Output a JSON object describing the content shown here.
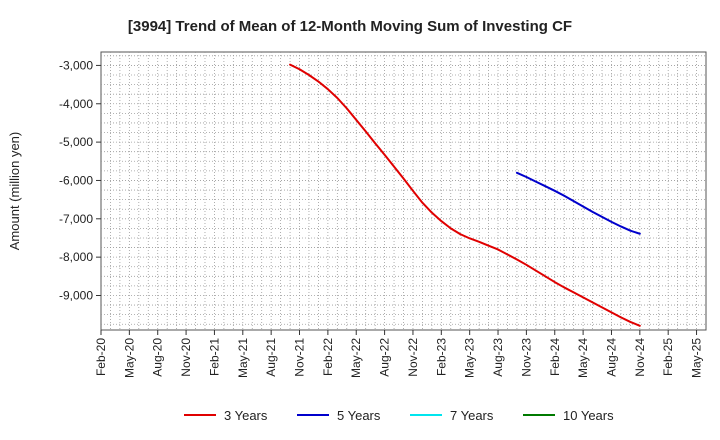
{
  "chart_data": {
    "type": "line",
    "title": "[3994]  Trend of Mean of 12-Month Moving Sum of Investing CF",
    "xlabel": "",
    "ylabel": "Amount (million yen)",
    "x_ticks": [
      "Feb-20",
      "May-20",
      "Aug-20",
      "Nov-20",
      "Feb-21",
      "May-21",
      "Aug-21",
      "Nov-21",
      "Feb-22",
      "May-22",
      "Aug-22",
      "Nov-22",
      "Feb-23",
      "May-23",
      "Aug-23",
      "Nov-23",
      "Feb-24",
      "May-24",
      "Aug-24",
      "Nov-24",
      "Feb-25",
      "May-25"
    ],
    "y_ticks": [
      -3000,
      -4000,
      -5000,
      -6000,
      -7000,
      -8000,
      -9000
    ],
    "y_tick_labels": [
      "-3,000",
      "-4,000",
      "-5,000",
      "-6,000",
      "-7,000",
      "-8,000",
      "-9,000"
    ],
    "ylim": [
      -9900,
      -2650
    ],
    "grid": true,
    "series": [
      {
        "name": "3 Years",
        "color": "#e00000",
        "points": [
          [
            "Oct-21",
            -2980
          ],
          [
            "Nov-21",
            -3100
          ],
          [
            "Dec-21",
            -3250
          ],
          [
            "Jan-22",
            -3420
          ],
          [
            "Feb-22",
            -3620
          ],
          [
            "Mar-22",
            -3850
          ],
          [
            "Apr-22",
            -4120
          ],
          [
            "May-22",
            -4420
          ],
          [
            "Jun-22",
            -4720
          ],
          [
            "Jul-22",
            -5030
          ],
          [
            "Aug-22",
            -5330
          ],
          [
            "Sep-22",
            -5640
          ],
          [
            "Oct-22",
            -5950
          ],
          [
            "Nov-22",
            -6270
          ],
          [
            "Dec-22",
            -6580
          ],
          [
            "Jan-23",
            -6840
          ],
          [
            "Feb-23",
            -7060
          ],
          [
            "Mar-23",
            -7250
          ],
          [
            "Apr-23",
            -7400
          ],
          [
            "May-23",
            -7510
          ],
          [
            "Jun-23",
            -7600
          ],
          [
            "Jul-23",
            -7700
          ],
          [
            "Aug-23",
            -7800
          ],
          [
            "Sep-23",
            -7930
          ],
          [
            "Oct-23",
            -8060
          ],
          [
            "Nov-23",
            -8200
          ],
          [
            "Dec-23",
            -8350
          ],
          [
            "Jan-24",
            -8500
          ],
          [
            "Feb-24",
            -8650
          ],
          [
            "Mar-24",
            -8790
          ],
          [
            "Apr-24",
            -8920
          ],
          [
            "May-24",
            -9050
          ],
          [
            "Jun-24",
            -9180
          ],
          [
            "Jul-24",
            -9310
          ],
          [
            "Aug-24",
            -9440
          ],
          [
            "Sep-24",
            -9570
          ],
          [
            "Oct-24",
            -9690
          ],
          [
            "Nov-24",
            -9790
          ]
        ]
      },
      {
        "name": "5 Years",
        "color": "#0000cc",
        "points": [
          [
            "Oct-23",
            -5800
          ],
          [
            "Nov-23",
            -5910
          ],
          [
            "Dec-23",
            -6030
          ],
          [
            "Jan-24",
            -6150
          ],
          [
            "Feb-24",
            -6270
          ],
          [
            "Mar-24",
            -6400
          ],
          [
            "Apr-24",
            -6540
          ],
          [
            "May-24",
            -6680
          ],
          [
            "Jun-24",
            -6820
          ],
          [
            "Jul-24",
            -6950
          ],
          [
            "Aug-24",
            -7080
          ],
          [
            "Sep-24",
            -7200
          ],
          [
            "Oct-24",
            -7310
          ],
          [
            "Nov-24",
            -7390
          ]
        ]
      },
      {
        "name": "7 Years",
        "color": "#00e5ee",
        "points": []
      },
      {
        "name": "10 Years",
        "color": "#007a00",
        "points": []
      }
    ]
  }
}
